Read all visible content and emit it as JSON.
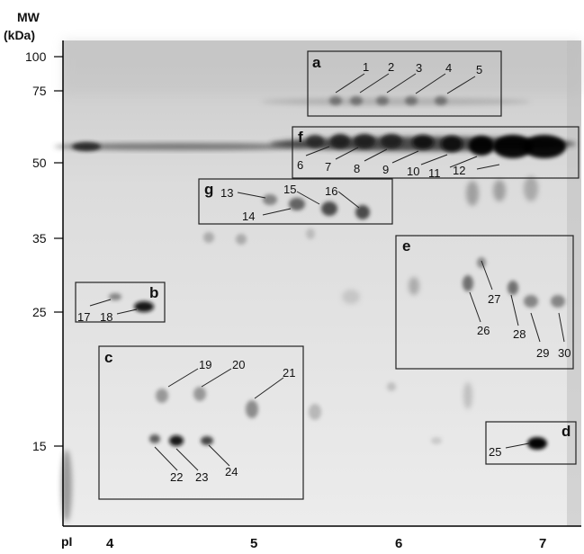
{
  "figure": {
    "y_axis": {
      "title_line1": "MW",
      "title_line2": "(kDa)",
      "ticks": [
        "100",
        "75",
        "50",
        "35",
        "25",
        "15"
      ]
    },
    "x_axis": {
      "title": "pI",
      "ticks": [
        "4",
        "5",
        "6",
        "7"
      ]
    },
    "boxes": [
      "a",
      "b",
      "c",
      "d",
      "e",
      "f",
      "g"
    ],
    "spots": [
      "1",
      "2",
      "3",
      "4",
      "5",
      "6",
      "7",
      "8",
      "9",
      "10",
      "11",
      "12",
      "13",
      "14",
      "15",
      "16",
      "17",
      "18",
      "19",
      "20",
      "21",
      "22",
      "23",
      "24",
      "25",
      "26",
      "27",
      "28",
      "29",
      "30"
    ]
  }
}
